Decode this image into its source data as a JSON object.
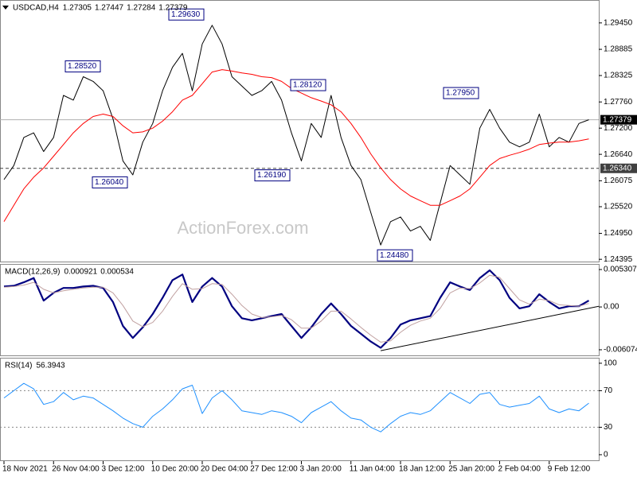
{
  "chart_data": [
    {
      "type": "line",
      "title": "USDCAD,H4",
      "ohlc": [
        1.27305,
        1.27447,
        1.27284,
        1.27379
      ],
      "watermark": "ActionForex.com",
      "categories": [
        "18 Nov 2021",
        null,
        null,
        null,
        null,
        "26 Nov 04:00",
        null,
        null,
        null,
        null,
        "3 Dec 12:00",
        null,
        null,
        null,
        null,
        "10 Dec 20:00",
        null,
        null,
        null,
        null,
        "20 Dec 04:00",
        null,
        null,
        null,
        null,
        "27 Dec 12:00",
        null,
        null,
        null,
        null,
        "3 Jan 20:00",
        null,
        null,
        null,
        null,
        "11 Jan 04:00",
        null,
        null,
        null,
        null,
        "18 Jan 12:00",
        null,
        null,
        null,
        null,
        "25 Jan 20:00",
        null,
        null,
        null,
        null,
        "2 Feb 04:00",
        null,
        null,
        null,
        null,
        "9 Feb 12:00",
        null,
        null,
        null,
        null
      ],
      "series": [
        {
          "color": "#000000",
          "width": 1,
          "values": [
            1.261,
            1.264,
            1.27,
            1.271,
            1.267,
            1.27,
            1.279,
            1.278,
            1.283,
            1.282,
            1.28,
            1.274,
            1.265,
            1.262,
            1.269,
            1.273,
            1.28,
            1.285,
            1.288,
            1.28,
            1.29,
            1.294,
            1.29,
            1.283,
            1.281,
            1.279,
            1.28,
            1.282,
            1.278,
            1.271,
            1.265,
            1.273,
            1.27,
            1.279,
            1.27,
            1.264,
            1.261,
            1.254,
            1.247,
            1.252,
            1.253,
            1.25,
            1.251,
            1.248,
            1.256,
            1.264,
            1.262,
            1.26,
            1.272,
            1.276,
            1.272,
            1.269,
            1.268,
            1.269,
            1.275,
            1.268,
            1.27,
            1.269,
            1.273,
            1.2738
          ]
        },
        {
          "color": "#ff0000",
          "width": 1,
          "values": [
            1.252,
            1.2555,
            1.259,
            1.2615,
            1.2635,
            1.266,
            1.2685,
            1.271,
            1.273,
            1.2745,
            1.275,
            1.2745,
            1.2725,
            1.271,
            1.2712,
            1.272,
            1.2735,
            1.2755,
            1.278,
            1.279,
            1.2815,
            1.284,
            1.2845,
            1.2842,
            1.2838,
            1.2835,
            1.283,
            1.2828,
            1.282,
            1.2805,
            1.2795,
            1.2785,
            1.2778,
            1.277,
            1.2755,
            1.273,
            1.27,
            1.2665,
            1.2635,
            1.261,
            1.259,
            1.2575,
            1.2565,
            1.2555,
            1.2555,
            1.2565,
            1.2575,
            1.259,
            1.2615,
            1.264,
            1.2655,
            1.2662,
            1.2668,
            1.2675,
            1.2685,
            1.2688,
            1.269,
            1.269,
            1.2693,
            1.2697
          ]
        }
      ],
      "ylim": [
        1.2433,
        1.2994
      ],
      "yticks": [
        {
          "value": 1.2945,
          "label": "1.29450"
        },
        {
          "value": 1.28885,
          "label": "1.28885"
        },
        {
          "value": 1.28325,
          "label": "1.28325"
        },
        {
          "value": 1.2776,
          "label": "1.27760"
        },
        {
          "value": 1.272,
          "label": "1.27200"
        },
        {
          "value": 1.2664,
          "label": "1.26640"
        },
        {
          "value": 1.26075,
          "label": "1.26075"
        },
        {
          "value": 1.2552,
          "label": "1.25520"
        },
        {
          "value": 1.2495,
          "label": "1.24950"
        },
        {
          "value": 1.24395,
          "label": "1.24395"
        }
      ],
      "levels": [
        {
          "value": 1.2634,
          "label": "1.26340",
          "style": "dashed"
        }
      ],
      "annotations": [
        {
          "value": 1.2852,
          "label": "1.28520"
        },
        {
          "value": 1.2604,
          "label": "1.26040"
        },
        {
          "value": 1.2963,
          "label": "1.29630"
        },
        {
          "value": 1.2812,
          "label": "1.28120"
        },
        {
          "value": 1.2619,
          "label": "1.26190"
        },
        {
          "value": 1.2448,
          "label": "1.24480"
        },
        {
          "value": 1.2795,
          "label": "1.27950"
        }
      ]
    },
    {
      "type": "line",
      "title": "MACD(12,26,9)",
      "readings": [
        0.000921,
        0.000534
      ],
      "series": [
        {
          "color": "#000080",
          "width": 2.2,
          "values": [
            0.0029,
            0.003,
            0.0035,
            0.0041,
            0.0009,
            0.002,
            0.0027,
            0.0027,
            0.0029,
            0.003,
            0.0027,
            0.0007,
            -0.0027,
            -0.0044,
            -0.0029,
            -0.001,
            0.0013,
            0.0038,
            0.0046,
            0.0007,
            0.0029,
            0.0041,
            0.0029,
            0.0001,
            -0.0016,
            -0.0019,
            -0.0016,
            -0.0013,
            -0.001,
            -0.0027,
            -0.0044,
            -0.0029,
            -0.001,
            0.0005,
            -0.001,
            -0.0027,
            -0.0038,
            -0.0049,
            -0.0058,
            -0.0044,
            -0.0025,
            -0.0019,
            -0.0016,
            -0.0013,
            0.0013,
            0.0035,
            0.0029,
            0.0024,
            0.0041,
            0.0052,
            0.0038,
            0.0013,
            -0.0002,
            0.0001,
            0.0018,
            0.0007,
            -0.0002,
            0.0001,
            0.0001,
            0.0009
          ]
        },
        {
          "color": "#c0a0a0",
          "width": 1,
          "values": [
            0.0028,
            0.0029,
            0.0031,
            0.0035,
            0.0025,
            0.002,
            0.0023,
            0.0025,
            0.0027,
            0.0028,
            0.0028,
            0.002,
            0.0002,
            -0.002,
            -0.0028,
            -0.0022,
            -0.0006,
            0.0015,
            0.0033,
            0.0025,
            0.0026,
            0.0033,
            0.0032,
            0.0018,
            0.0002,
            -0.001,
            -0.0015,
            -0.0014,
            -0.0012,
            -0.0018,
            -0.003,
            -0.003,
            -0.002,
            -0.0006,
            -0.0006,
            -0.0017,
            -0.0029,
            -0.004,
            -0.005,
            -0.0048,
            -0.0036,
            -0.0026,
            -0.002,
            -0.0016,
            -0.0002,
            0.002,
            0.0027,
            0.0026,
            0.0034,
            0.0045,
            0.0042,
            0.0026,
            0.001,
            0.0004,
            0.0011,
            0.0009,
            0.0003,
            0.0002,
            0.0001,
            0.0005
          ]
        }
      ],
      "ylim": [
        -0.00698,
        0.0061
      ],
      "yticks": [
        0.005307,
        {
          "value": 0,
          "label": "0.00"
        },
        -0.006074
      ],
      "trendline": {
        "values": [
          -0.0062,
          0.0001
        ],
        "color": "#000000"
      }
    },
    {
      "type": "line",
      "title": "RSI(14)",
      "readings": [
        56.3943
      ],
      "series": [
        {
          "color": "#1e90ff",
          "width": 1,
          "values": [
            62,
            70,
            78,
            72,
            55,
            58,
            68,
            60,
            64,
            62,
            55,
            48,
            40,
            34,
            30,
            42,
            50,
            60,
            72,
            76,
            45,
            62,
            70,
            60,
            48,
            46,
            44,
            48,
            46,
            42,
            35,
            46,
            52,
            58,
            48,
            40,
            38,
            30,
            25,
            34,
            42,
            46,
            44,
            48,
            58,
            68,
            62,
            56,
            66,
            68,
            55,
            52,
            54,
            56,
            64,
            50,
            46,
            50,
            48,
            56.4
          ]
        }
      ],
      "ylim": [
        -7,
        106
      ],
      "yticks": [
        0,
        30,
        70,
        100
      ],
      "levels": [
        {
          "value": 30,
          "style": "dotted"
        },
        {
          "value": 70,
          "style": "dotted"
        }
      ]
    }
  ]
}
